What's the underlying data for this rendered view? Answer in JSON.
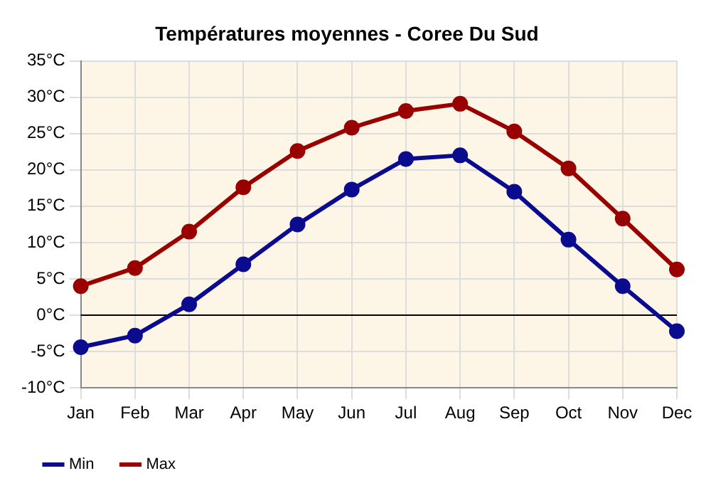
{
  "chart_data": {
    "type": "line",
    "title": "Températures moyennes - Coree Du Sud",
    "categories": [
      "Jan",
      "Feb",
      "Mar",
      "Apr",
      "May",
      "Jun",
      "Jul",
      "Aug",
      "Sep",
      "Oct",
      "Nov",
      "Dec"
    ],
    "series": [
      {
        "name": "Min",
        "color": "#0b0b8f",
        "values": [
          -4.4,
          -2.8,
          1.5,
          7.0,
          12.5,
          17.3,
          21.5,
          22.0,
          17.0,
          10.4,
          4.0,
          -2.2
        ]
      },
      {
        "name": "Max",
        "color": "#990000",
        "values": [
          4.0,
          6.5,
          11.5,
          17.6,
          22.6,
          25.8,
          28.1,
          29.1,
          25.3,
          20.2,
          13.3,
          6.3
        ]
      }
    ],
    "ylim": [
      -10,
      35
    ],
    "yticks": [
      {
        "value": -10,
        "label": "-10°C"
      },
      {
        "value": -5,
        "label": "-5°C"
      },
      {
        "value": 0,
        "label": "0°C"
      },
      {
        "value": 5,
        "label": "5°C"
      },
      {
        "value": 10,
        "label": "10°C"
      },
      {
        "value": 15,
        "label": "15°C"
      },
      {
        "value": 20,
        "label": "20°C"
      },
      {
        "value": 25,
        "label": "25°C"
      },
      {
        "value": 30,
        "label": "30°C"
      },
      {
        "value": 35,
        "label": "35°C"
      }
    ],
    "ref_lines": [
      {
        "axis": "y",
        "value": 0,
        "color": "#000000"
      }
    ],
    "grid": true,
    "legend": "bottom left",
    "marker": "circle",
    "line_style": "solid"
  }
}
